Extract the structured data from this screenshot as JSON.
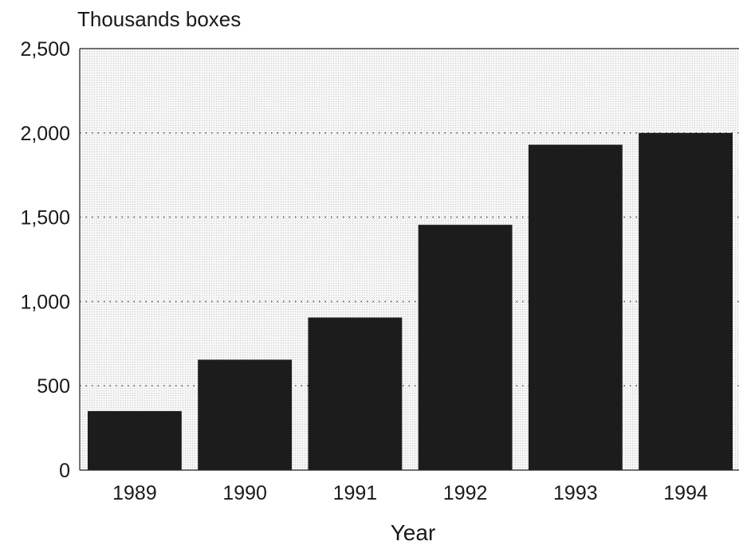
{
  "chart_data": {
    "type": "bar",
    "title": "",
    "y_unit_label": "Thousands boxes",
    "xlabel": "Year",
    "ylabel": "",
    "categories": [
      "1989",
      "1990",
      "1991",
      "1992",
      "1993",
      "1994"
    ],
    "values": [
      350,
      655,
      905,
      1455,
      1930,
      2000
    ],
    "ylim": [
      0,
      2500
    ],
    "yticks": [
      0,
      500,
      1000,
      1500,
      2000,
      2500
    ],
    "ytick_labels": [
      "0",
      "500",
      "1,000",
      "1,500",
      "2,000",
      "2,500"
    ],
    "grid": true,
    "grid_style": "dotted",
    "legend": "none",
    "bar_color": "#1c1c1c",
    "background_color": "#f4f4f4"
  }
}
